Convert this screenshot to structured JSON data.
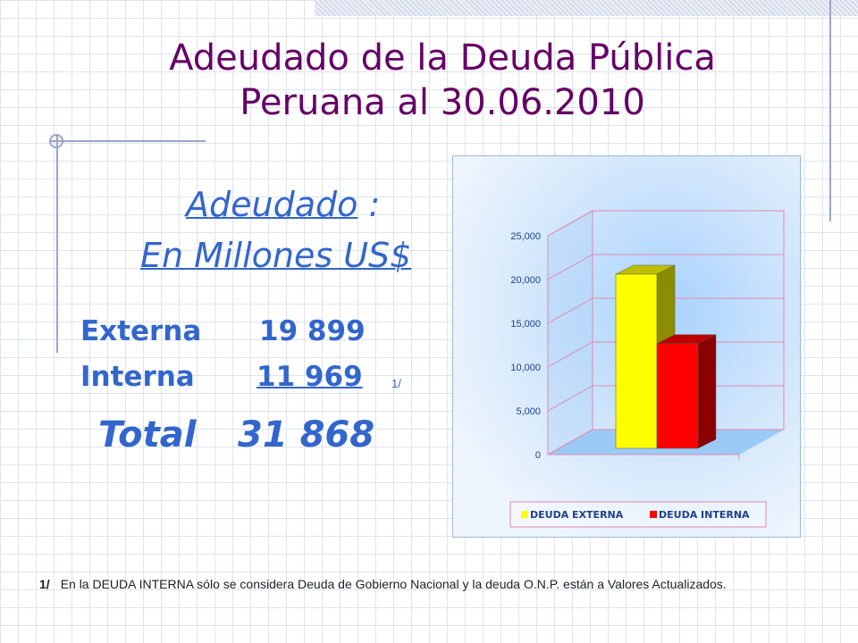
{
  "slide": {
    "title_line1": "Adeudado de la Deuda Pública",
    "title_line2": "Peruana al 30.06.2010",
    "subtitle_word": "Adeudado",
    "subtitle_colon": " :",
    "subtitle_line2": "En Millones US$",
    "rows": [
      {
        "label": "Externa",
        "value": "19 899"
      },
      {
        "label": "Interna",
        "value": "11 969"
      }
    ],
    "note_marker": "1/",
    "total_label": "Total",
    "total_value": "31 868",
    "footnote_marker": "1/",
    "footnote_text": "En la DEUDA INTERNA sólo se considera Deuda de Gobierno Nacional y la deuda O.N.P. están a Valores Actualizados."
  },
  "chart_data": {
    "type": "bar",
    "style": "3d-clustered",
    "title": "",
    "xlabel": "",
    "ylabel": "",
    "categories": [
      ""
    ],
    "series": [
      {
        "name": "DEUDA EXTERNA",
        "values": [
          19899
        ],
        "color": "#ffff00"
      },
      {
        "name": "DEUDA INTERNA",
        "values": [
          11969
        ],
        "color": "#ff0000"
      }
    ],
    "yticks": [
      "0",
      "5,000",
      "10,000",
      "15,000",
      "20,000",
      "25,000"
    ],
    "ylim": [
      0,
      25000
    ],
    "grid": true,
    "legend": "bottom"
  },
  "colors": {
    "title": "#660066",
    "text_accent": "#3366cc",
    "external": "#ffff00",
    "internal": "#ff0000"
  }
}
